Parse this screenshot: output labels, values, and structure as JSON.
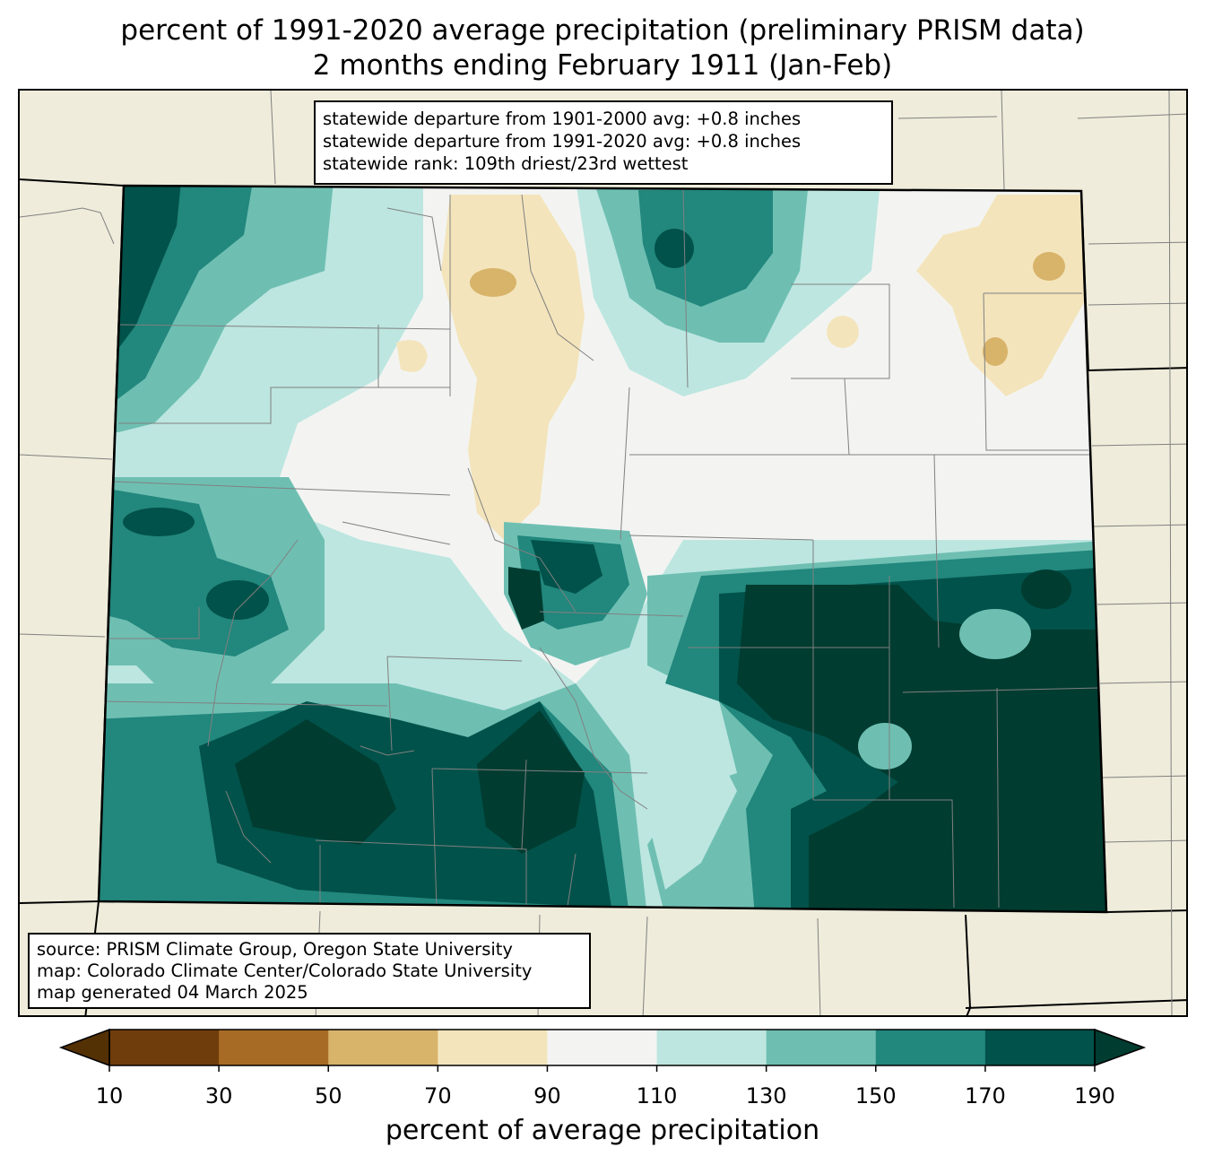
{
  "header": {
    "title_line1": "percent of 1991-2020 average precipitation (preliminary PRISM data)",
    "title_line2": "2 months ending February 1911 (Jan-Feb)"
  },
  "stats": {
    "line1": "statewide departure from 1901-2000 avg: +0.8 inches",
    "line2": "statewide departure from 1991-2020 avg: +0.8 inches",
    "line3": "statewide rank: 109th driest/23rd wettest"
  },
  "credits": {
    "line1": "source: PRISM Climate Group, Oregon State University",
    "line2": "map: Colorado Climate Center/Colorado State University",
    "line3": "map generated 04 March 2025"
  },
  "colorbar": {
    "label": "percent of average precipitation",
    "ticks": [
      "10",
      "30",
      "50",
      "70",
      "90",
      "110",
      "130",
      "150",
      "170",
      "190"
    ],
    "under_color": "#543005",
    "over_color": "#003c30",
    "colors": [
      "#6f3d0c",
      "#a86b25",
      "#d8b36a",
      "#f3e4bb",
      "#f3f4f2",
      "#bde6e0",
      "#6ebfb2",
      "#22877d",
      "#01524a"
    ]
  },
  "map": {
    "background_color": "#efecdb",
    "palette": {
      "dark_brown": "#a86b25",
      "tan": "#d8b36a",
      "light_tan": "#f3e4bb",
      "near_normal": "#f3f4f2",
      "light_teal": "#bde6e0",
      "teal": "#6ebfb2",
      "dark_teal": "#22877d",
      "darkest_teal": "#01524a",
      "deepest": "#003c30"
    }
  }
}
